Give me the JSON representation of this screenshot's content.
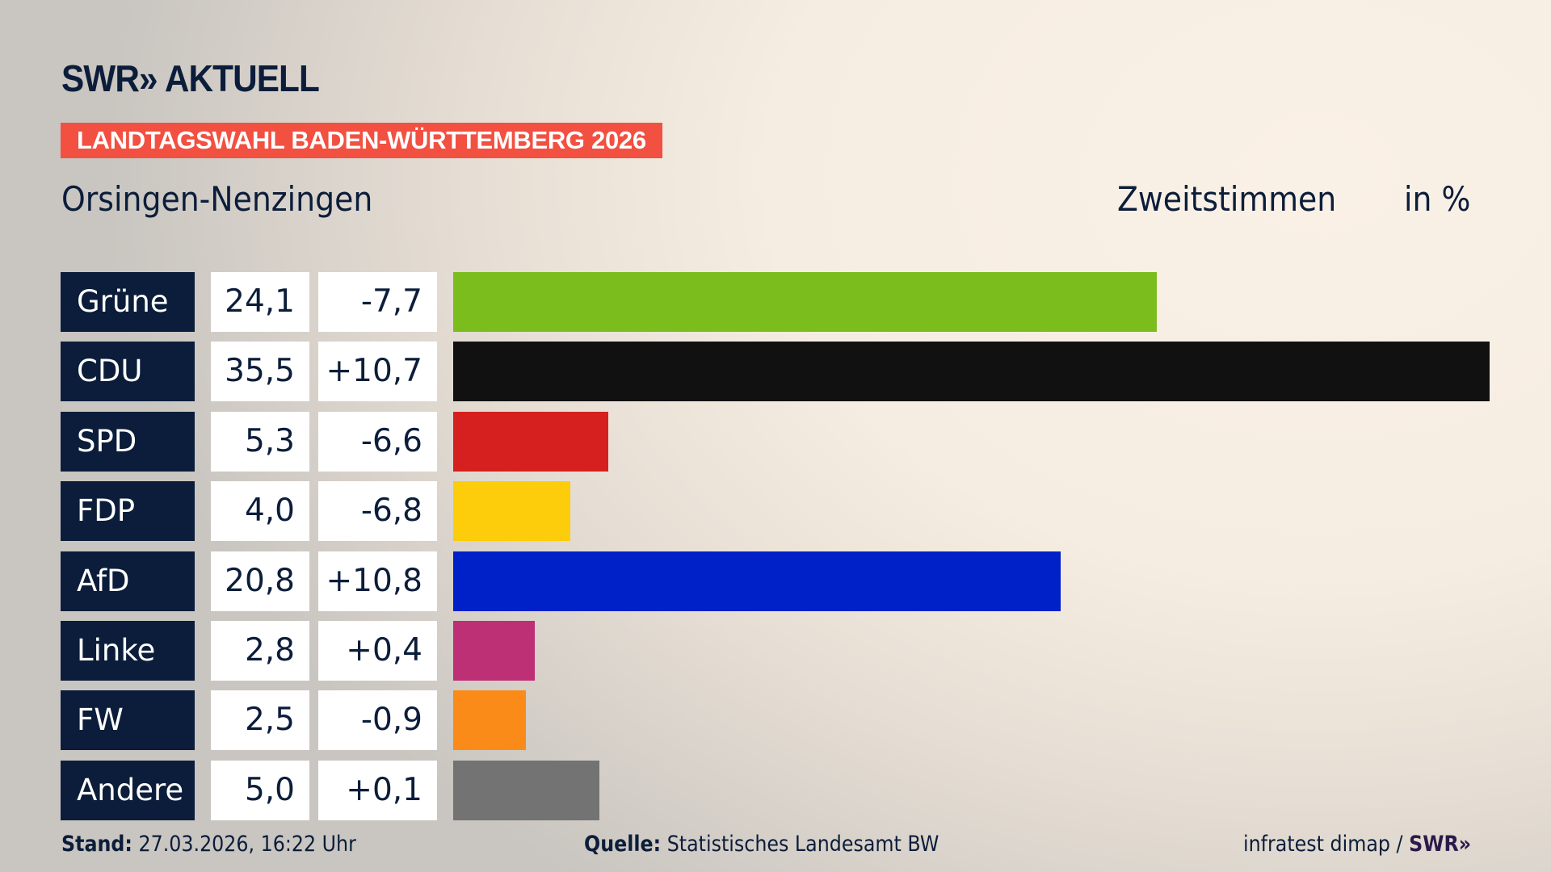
{
  "logo": "SWR» AKTUELL",
  "banner": "LANDTAGSWAHL BADEN-WÜRTTEMBERG 2026",
  "region": "Orsingen-Nenzingen",
  "measure": "Zweitstimmen",
  "unit": "in %",
  "chart_data": {
    "type": "bar",
    "orientation": "horizontal",
    "categories": [
      "Grüne",
      "CDU",
      "SPD",
      "FDP",
      "AfD",
      "Linke",
      "FW",
      "Andere"
    ],
    "values": [
      24.1,
      35.5,
      5.3,
      4.0,
      20.8,
      2.8,
      2.5,
      5.0
    ],
    "value_labels": [
      "24,1",
      "35,5",
      "5,3",
      "4,0",
      "20,8",
      "2,8",
      "2,5",
      "5,0"
    ],
    "diff_labels": [
      "-7,7",
      "+10,7",
      "-6,6",
      "-6,8",
      "+10,8",
      "+0,4",
      "-0,9",
      "+0,1"
    ],
    "colors": [
      "#7cbd1e",
      "#111111",
      "#d6201f",
      "#fdcc0a",
      "#0021c8",
      "#bd3075",
      "#fb8b19",
      "#737373"
    ],
    "xlim": [
      0,
      35.5
    ]
  },
  "footer": {
    "stand_label": "Stand:",
    "stand_value": "27.03.2026, 16:22 Uhr",
    "source_label": "Quelle:",
    "source_value": "Statistisches Landesamt BW",
    "credit": "infratest dimap / ",
    "credit_logo": "SWR»"
  }
}
